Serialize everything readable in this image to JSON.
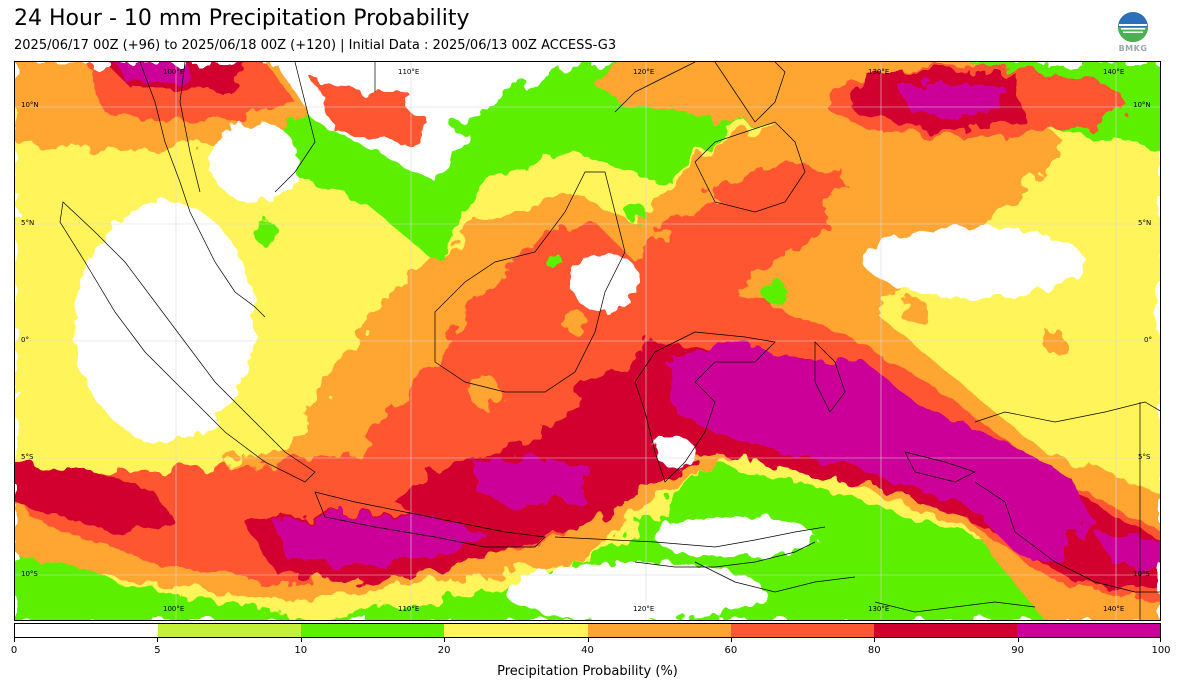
{
  "header": {
    "title": "24 Hour - 10 mm Precipitation Probability",
    "subtitle": "2025/06/17 00Z (+96) to 2025/06/18 00Z (+120) | Initial Data : 2025/06/13 00Z ACCESS-G3",
    "logo_text": "BMKG"
  },
  "map": {
    "lon_labels_top": [
      "100°E",
      "110°E",
      "120°E",
      "130°E",
      "140°E"
    ],
    "lon_labels_bottom": [
      "100°E",
      "110°E",
      "120°E",
      "130°E",
      "140°E"
    ],
    "lat_labels_left": [
      "10°N",
      "5°N",
      "0°",
      "5°S",
      "10°S"
    ],
    "lat_labels_right": [
      "10°N",
      "5°N",
      "0°",
      "5°S",
      "10°S"
    ]
  },
  "colorbar": {
    "title": "Precipitation Probability (%)",
    "ticks": [
      "0",
      "5",
      "10",
      "20",
      "40",
      "60",
      "80",
      "90",
      "100"
    ],
    "colors": [
      "#ffffff",
      "#c4f03a",
      "#5cf000",
      "#fff55a",
      "#ffa533",
      "#ff5733",
      "#d2002e",
      "#cc0099"
    ]
  },
  "colors": {
    "white": "#ffffff",
    "lime": "#c4f03a",
    "green": "#5cf000",
    "yellow": "#fff55a",
    "orange": "#ffa533",
    "red": "#ff5733",
    "crimson": "#d2002e",
    "magenta": "#cc0099"
  }
}
